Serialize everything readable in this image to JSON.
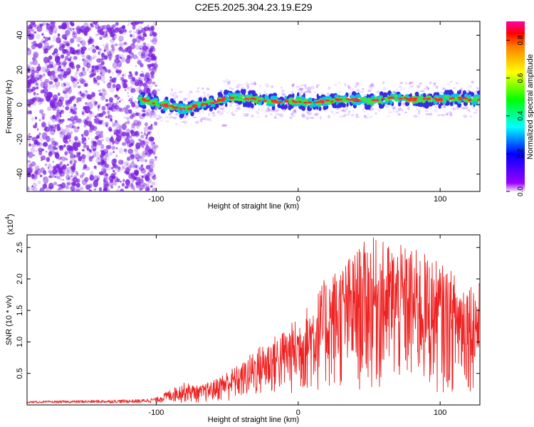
{
  "figure": {
    "title": "C2E5.2025.304.23.19.E29"
  },
  "chart_data": [
    {
      "type": "heatmap",
      "title": "C2E5.2025.304.23.19.E29",
      "xlabel": "Height of straight line (km)",
      "ylabel": "Frequency (Hz)",
      "xlim": [
        -191,
        128
      ],
      "ylim": [
        -50,
        48
      ],
      "xticks": [
        -100,
        0,
        100
      ],
      "xtick_labels": [
        "-100",
        "0",
        "100"
      ],
      "yticks": [
        -40,
        -20,
        0,
        20,
        40
      ],
      "ytick_labels": [
        "-40",
        "-20",
        "0",
        "20",
        "40"
      ],
      "noise_region_x": [
        -191,
        -100
      ],
      "signal_band": {
        "x": [
          -112,
          -100,
          -90,
          -80,
          -70,
          -60,
          -50,
          -40,
          -30,
          -20,
          -10,
          0,
          10,
          20,
          30,
          40,
          50,
          60,
          70,
          80,
          90,
          100,
          110,
          120,
          128
        ],
        "center_freq_hz": [
          3,
          1,
          -1,
          -3,
          0,
          1,
          4,
          4,
          3,
          2,
          2,
          2,
          1,
          2,
          3,
          3,
          2,
          3,
          4,
          3,
          3,
          3,
          4,
          3,
          3
        ],
        "peak_amplitude": [
          0.5,
          0.6,
          0.65,
          0.7,
          0.7,
          0.75,
          0.8,
          0.85,
          0.9,
          0.9,
          0.85,
          0.9,
          0.85,
          0.85,
          0.9,
          0.85,
          0.8,
          0.85,
          0.9,
          0.85,
          0.85,
          0.9,
          0.9,
          0.85,
          0.85
        ]
      },
      "colorbar": {
        "label": "Normalized spectral amplitude",
        "range": [
          0.0,
          0.9
        ],
        "ticks": [
          0.0,
          0.2,
          0.4,
          0.6,
          0.8
        ],
        "tick_labels": [
          "0.0",
          "0.2",
          "0.4",
          "0.6",
          "0.8"
        ]
      }
    },
    {
      "type": "line",
      "xlabel": "Height of straight line (km)",
      "ylabel": "SNR (10 * v/v)",
      "yscale_label": "(x10",
      "yscale_exponent": "4",
      "xlim": [
        -191,
        128
      ],
      "ylim": [
        0,
        27000
      ],
      "xticks": [
        -100,
        0,
        100
      ],
      "xtick_labels": [
        "-100",
        "0",
        "100"
      ],
      "yticks": [
        5000,
        10000,
        15000,
        20000,
        25000
      ],
      "ytick_labels": [
        "0.5",
        "1.0",
        "1.5",
        "2.0",
        "2.5"
      ],
      "series": [
        {
          "name": "SNR",
          "color": "#ee2222",
          "envelope": {
            "x": [
              -191,
              -110,
              -100,
              -90,
              -80,
              -70,
              -60,
              -50,
              -40,
              -30,
              -20,
              -10,
              0,
              10,
              20,
              30,
              40,
              50,
              60,
              70,
              80,
              90,
              100,
              110,
              120,
              128
            ],
            "max": [
              600,
              900,
              1200,
              2500,
              3600,
              3000,
              3900,
              5500,
              6600,
              9000,
              10500,
              12000,
              14000,
              16800,
              20500,
              22500,
              24500,
              26800,
              26000,
              25500,
              25000,
              24000,
              22500,
              21000,
              20000,
              19500
            ],
            "min": [
              300,
              300,
              300,
              300,
              300,
              300,
              400,
              400,
              600,
              800,
              1000,
              1200,
              1200,
              1500,
              1500,
              1500,
              1500,
              1500,
              1500,
              1500,
              1500,
              1500,
              1500,
              1500,
              2000,
              2000
            ]
          }
        }
      ]
    }
  ],
  "colors": {
    "noise_purple": "#7a1fe0",
    "line_red": "#ee2222"
  }
}
